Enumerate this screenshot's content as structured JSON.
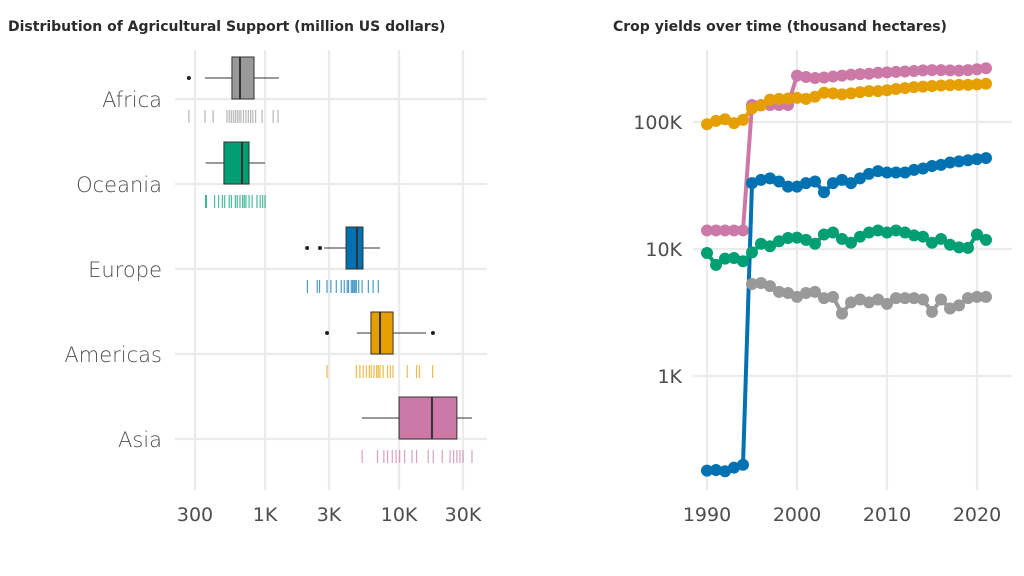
{
  "chart_data": [
    {
      "type": "boxplot",
      "title": "Distribution of Agricultural Support (million US dollars)",
      "x_scale": "log",
      "xlim": [
        230,
        40000
      ],
      "x_ticks": [
        300,
        1000,
        3000,
        10000,
        30000
      ],
      "x_tick_labels": [
        "300",
        "1K",
        "3K",
        "10K",
        "30K"
      ],
      "grid": true,
      "categories": [
        "Africa",
        "Oceania",
        "Europe",
        "Americas",
        "Asia"
      ],
      "colors": [
        "#999999",
        "#009E73",
        "#0072B2",
        "#E69F00",
        "#CC79A7"
      ],
      "boxes": [
        {
          "whisker_low": 356,
          "q1": 566,
          "median": 650,
          "q3": 827,
          "whisker_high": 1270,
          "outliers": [
            270
          ],
          "rug": [
            270,
            356,
            410,
            520,
            540,
            560,
            580,
            600,
            620,
            640,
            660,
            690,
            720,
            750,
            780,
            810,
            850,
            950,
            1150,
            1250
          ]
        },
        {
          "whisker_low": 360,
          "q1": 493,
          "median": 673,
          "q3": 759,
          "whisker_high": 1000,
          "outliers": [],
          "rug": [
            360,
            365,
            420,
            450,
            480,
            500,
            540,
            560,
            600,
            620,
            650,
            680,
            700,
            720,
            760,
            800,
            870,
            920,
            960,
            1000
          ]
        },
        {
          "whisker_low": 2760,
          "q1": 4020,
          "median": 4850,
          "q3": 5380,
          "whisker_high": 7210,
          "outliers": [
            2060,
            2570
          ],
          "rug": [
            2070,
            2450,
            2550,
            2900,
            3100,
            3400,
            3700,
            3900,
            4100,
            4200,
            4400,
            4500,
            4600,
            4700,
            4800,
            5000,
            5300,
            5900,
            6400,
            7000
          ]
        },
        {
          "whisker_low": 4850,
          "q1": 6170,
          "median": 7210,
          "q3": 9020,
          "whisker_high": 15900,
          "outliers": [
            2900,
            17900
          ],
          "rug": [
            2900,
            4800,
            5100,
            5400,
            5700,
            6000,
            6200,
            6500,
            6800,
            7000,
            7200,
            7600,
            8200,
            8600,
            9000,
            11500,
            13500,
            14200,
            17800
          ]
        },
        {
          "whisker_low": 5290,
          "q1": 10000,
          "median": 17600,
          "q3": 27000,
          "whisker_high": 35000,
          "outliers": [],
          "rug": [
            5300,
            6900,
            7700,
            8200,
            8900,
            9500,
            10100,
            11000,
            12500,
            13500,
            16500,
            18000,
            21000,
            24000,
            25500,
            27000,
            28500,
            30000,
            35000
          ]
        }
      ]
    },
    {
      "type": "line",
      "title": "Crop yields over time (thousand hectares)",
      "y_scale": "log",
      "xlim": [
        1989,
        2023
      ],
      "ylim": [
        120,
        350000
      ],
      "x_ticks": [
        1990,
        2000,
        2010,
        2020
      ],
      "x_tick_labels": [
        "1990",
        "2000",
        "2010",
        "2020"
      ],
      "y_ticks": [
        1000,
        10000,
        100000
      ],
      "y_tick_labels": [
        "1K",
        "10K",
        "100K"
      ],
      "grid": true,
      "series": [
        {
          "color": "#CC79A7",
          "x_start": 1990,
          "values": [
            14000,
            14000,
            14000,
            14000,
            14000,
            136000,
            136000,
            136000,
            136000,
            136000,
            232000,
            226000,
            222000,
            224000,
            228000,
            232000,
            236000,
            238000,
            240000,
            244000,
            246000,
            248000,
            250000,
            252000,
            255000,
            256000,
            256000,
            255000,
            254000,
            256000,
            260000,
            265000
          ]
        },
        {
          "color": "#E69F00",
          "x_start": 1990,
          "values": [
            96000,
            102000,
            105000,
            98000,
            104000,
            128000,
            135000,
            150000,
            152000,
            153000,
            155000,
            152000,
            158000,
            170000,
            168000,
            165000,
            168000,
            172000,
            175000,
            175000,
            178000,
            182000,
            185000,
            188000,
            190000,
            192000,
            194000,
            195000,
            196000,
            196000,
            198000,
            200000
          ]
        },
        {
          "color": "#0072B2",
          "x_start": 1990,
          "values": [
            180,
            182,
            178,
            190,
            200,
            33000,
            35000,
            36000,
            34000,
            31000,
            31000,
            33000,
            34000,
            28000,
            33000,
            35000,
            33000,
            36000,
            39000,
            41000,
            40000,
            40000,
            40000,
            42000,
            43000,
            45000,
            46000,
            48000,
            49000,
            50000,
            51000,
            52000
          ]
        },
        {
          "color": "#009E73",
          "x_start": 1990,
          "values": [
            9300,
            7500,
            8400,
            8500,
            8000,
            9400,
            11000,
            10500,
            11500,
            12200,
            12300,
            11800,
            11000,
            13000,
            13500,
            12000,
            11200,
            12500,
            13500,
            14000,
            13500,
            14000,
            13500,
            12800,
            12500,
            11200,
            12000,
            10800,
            10300,
            10200,
            13000,
            11800
          ]
        },
        {
          "color": "#999999",
          "x_start": 1995,
          "values": [
            5300,
            5400,
            5100,
            4600,
            4500,
            4200,
            4500,
            4600,
            4100,
            4200,
            3100,
            3800,
            4000,
            3800,
            4000,
            3700,
            4100,
            4100,
            4100,
            4000,
            3200,
            4000,
            3400,
            3600,
            4100,
            4200,
            4200
          ]
        }
      ]
    }
  ]
}
